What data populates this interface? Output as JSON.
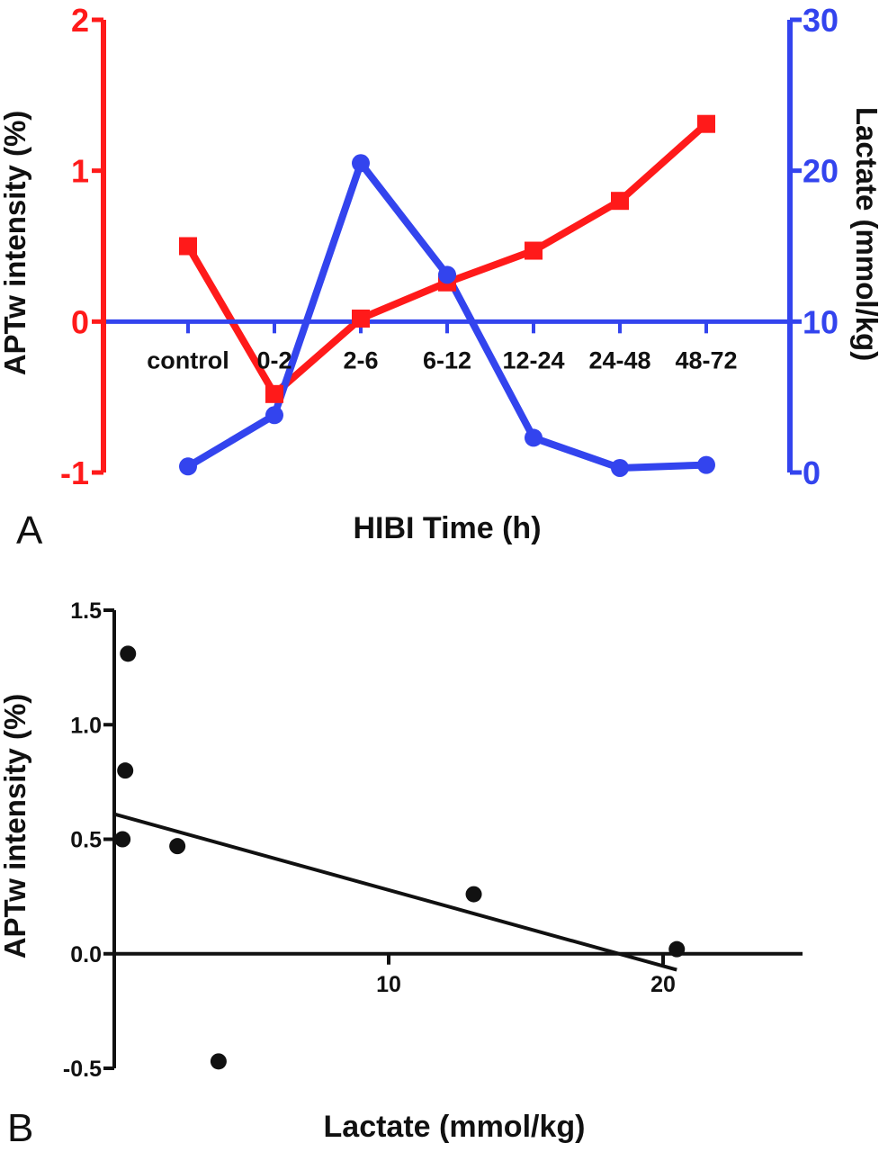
{
  "panels": [
    {
      "letter": "A"
    },
    {
      "letter": "B"
    }
  ],
  "chart_data": [
    {
      "type": "line",
      "panel": "A",
      "xlabel": "HIBI Time (h)",
      "categories": [
        "control",
        "0-2",
        "2-6",
        "6-12",
        "12-24",
        "24-48",
        "48-72"
      ],
      "y_left": {
        "label": "APTw intensity (%)",
        "ticks": [
          "2",
          "1",
          "0",
          "-1"
        ],
        "ylim": [
          -1,
          2
        ],
        "color": "#ff1a1a"
      },
      "y_right": {
        "label": "Lactate (mmol/kg)",
        "ticks": [
          "30",
          "20",
          "10",
          "0"
        ],
        "ylim": [
          0,
          30
        ],
        "color": "#3344ee"
      },
      "series": [
        {
          "axis": "left",
          "marker": "square",
          "color": "#ff1a1a",
          "values": [
            0.5,
            -0.48,
            0.02,
            0.26,
            0.47,
            0.8,
            1.31
          ]
        },
        {
          "axis": "right",
          "marker": "circle",
          "color": "#3344ee",
          "values": [
            0.4,
            3.8,
            20.5,
            13.1,
            2.3,
            0.3,
            0.5
          ]
        }
      ],
      "grid": false
    },
    {
      "type": "scatter",
      "panel": "B",
      "xlabel": "Lactate (mmol/kg)",
      "ylabel": "APTw intensity (%)",
      "x_ticks": [
        "10",
        "20"
      ],
      "y_ticks": [
        "1.5",
        "1.0",
        "0.5",
        "0.0",
        "-0.5"
      ],
      "xlim": [
        0,
        25
      ],
      "ylim": [
        -0.5,
        1.5
      ],
      "points": [
        {
          "x": 0.4,
          "y": 0.8
        },
        {
          "x": 0.3,
          "y": 0.5
        },
        {
          "x": 0.5,
          "y": 1.31
        },
        {
          "x": 2.3,
          "y": 0.47
        },
        {
          "x": 3.8,
          "y": -0.47
        },
        {
          "x": 13.1,
          "y": 0.26
        },
        {
          "x": 20.5,
          "y": 0.02
        }
      ],
      "fit_line": {
        "x": [
          0,
          20.5
        ],
        "y": [
          0.61,
          -0.07
        ]
      },
      "grid": false
    }
  ]
}
